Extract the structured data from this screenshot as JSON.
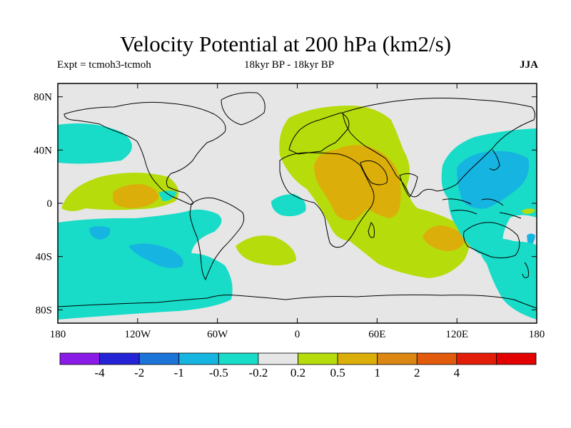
{
  "title": "Velocity Potential at 200 hPa (km2/s)",
  "subtitle": {
    "experiment": "Expt = tcmoh3-tcmoh",
    "period": "18kyr BP - 18kyr BP",
    "season": "JJA"
  },
  "map": {
    "projection": "cylindrical equidistant",
    "lon_range": [
      -180,
      180
    ],
    "lat_range": [
      -90,
      90
    ],
    "x_ticks": [
      "180",
      "120W",
      "60W",
      "0",
      "60E",
      "120E",
      "180"
    ],
    "y_ticks": [
      "80N",
      "40N",
      "0",
      "40S",
      "80S"
    ],
    "background_color": "#e6e6e6"
  },
  "colorbar": {
    "colors": [
      "#8a1ae6",
      "#2424d6",
      "#1c74d8",
      "#16b4e0",
      "#18dcc8",
      "#e6e6e6",
      "#b6dc0c",
      "#dcae0a",
      "#dc8614",
      "#e25a0c",
      "#e21e0a",
      "#e20000"
    ],
    "labels": [
      "-4",
      "-2",
      "-1",
      "-0.5",
      "-0.2",
      "0.2",
      "0.5",
      "1",
      "2",
      "4"
    ]
  },
  "chart_data": {
    "type": "heatmap",
    "title": "Velocity Potential at 200 hPa (km2/s)",
    "xlabel": "",
    "ylabel": "",
    "x_range": [
      -180,
      180
    ],
    "y_range": [
      -90,
      90
    ],
    "contour_levels": [
      -4,
      -2,
      -1,
      -0.5,
      -0.2,
      0.2,
      0.5,
      1,
      2,
      4
    ],
    "features": [
      {
        "region": "Europe / North Africa / Middle East",
        "min_value": 0.2,
        "max_value": 1
      },
      {
        "region": "Eastern Africa / Arabia (core)",
        "min_value": 0.5,
        "max_value": 1
      },
      {
        "region": "Southern Indian Ocean",
        "min_value": 0.5,
        "max_value": 1
      },
      {
        "region": "Eastern Tropical Pacific",
        "min_value": 0.5,
        "max_value": 1
      },
      {
        "region": "South Atlantic",
        "min_value": 0.2,
        "max_value": 0.5
      },
      {
        "region": "Western Pacific / East Asia",
        "min_value": -1,
        "max_value": -0.2
      },
      {
        "region": "South Pacific",
        "min_value": -1,
        "max_value": -0.2
      },
      {
        "region": "North Pacific",
        "min_value": -0.5,
        "max_value": -0.2
      },
      {
        "region": "Equatorial Atlantic",
        "min_value": -0.5,
        "max_value": -0.2
      },
      {
        "region": "Australia / Southern Ocean",
        "min_value": -0.5,
        "max_value": -0.2
      },
      {
        "region": "Southeast Pacific / Southern Ocean",
        "min_value": -0.5,
        "max_value": -0.2
      }
    ]
  }
}
